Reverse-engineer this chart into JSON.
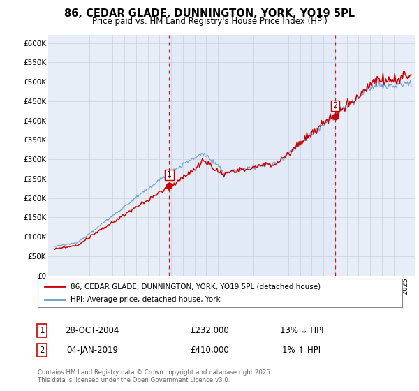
{
  "title": "86, CEDAR GLADE, DUNNINGTON, YORK, YO19 5PL",
  "subtitle": "Price paid vs. HM Land Registry's House Price Index (HPI)",
  "legend_line1": "86, CEDAR GLADE, DUNNINGTON, YORK, YO19 5PL (detached house)",
  "legend_line2": "HPI: Average price, detached house, York",
  "sale1_date": "28-OCT-2004",
  "sale1_price": 232000,
  "sale1_hpi": "13% ↓ HPI",
  "sale2_date": "04-JAN-2019",
  "sale2_price": 410000,
  "sale2_hpi": "1% ↑ HPI",
  "footer": "Contains HM Land Registry data © Crown copyright and database right 2025.\nThis data is licensed under the Open Government Licence v3.0.",
  "red_color": "#cc0000",
  "blue_color": "#6699cc",
  "blue_fill": "#dde8f5",
  "bg_color": "#e8eef8",
  "grid_color": "#c8d0dc",
  "sale1_x": 2004.83,
  "sale2_x": 2019.01,
  "ylim_max": 620000,
  "xlim_min": 1994.5,
  "xlim_max": 2025.8
}
